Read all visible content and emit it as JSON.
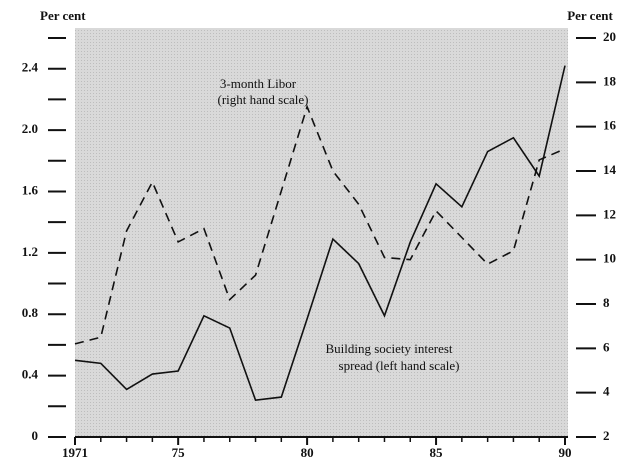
{
  "chart_data": {
    "type": "line",
    "y_axis_label": "Per cent",
    "y2_axis_label": "Per cent",
    "x": [
      1971,
      1972,
      1973,
      1974,
      1975,
      1976,
      1977,
      1978,
      1979,
      1980,
      1981,
      1982,
      1983,
      1984,
      1985,
      1986,
      1987,
      1988,
      1989,
      1990
    ],
    "series": [
      {
        "name": "Building society interest",
        "color": "#111111",
        "dash": "solid",
        "axis": "y",
        "values": [
          0.5,
          0.48,
          0.31,
          0.41,
          0.43,
          0.79,
          0.71,
          0.24,
          0.26,
          0.77,
          1.29,
          1.13,
          0.79,
          1.27,
          1.65,
          1.5,
          1.86,
          1.95,
          1.7,
          2.42
        ]
      },
      {
        "name": "3-month Libor",
        "color": "#111111",
        "dash": "dashed",
        "axis": "y2",
        "values": [
          6.2,
          6.5,
          11.3,
          13.5,
          10.8,
          11.4,
          8.2,
          9.3,
          13.1,
          16.9,
          14.0,
          12.5,
          10.1,
          10.0,
          12.2,
          11.0,
          9.8,
          10.4,
          14.5,
          15.0
        ]
      }
    ],
    "annotations": [
      "(right hand scale)",
      "spread (left hand scale)"
    ],
    "xlim": [
      1971,
      1990
    ],
    "xticks": [
      {
        "value": 1971,
        "label": "1971"
      },
      {
        "value": 1975,
        "label": "75"
      },
      {
        "value": 1980,
        "label": "80"
      },
      {
        "value": 1985,
        "label": "85"
      },
      {
        "value": 1990,
        "label": "90"
      }
    ],
    "xminorticks": [
      1972,
      1973,
      1974,
      1976,
      1977,
      1978,
      1979,
      1981,
      1982,
      1983,
      1984,
      1986,
      1987,
      1988,
      1989
    ],
    "ylim": [
      0,
      2.6
    ],
    "yticks": [
      0,
      0.4,
      0.8,
      1.2,
      1.6,
      {
        "value": 2,
        "label": "2.0"
      },
      2.4
    ],
    "yminorticks": [
      0.2,
      0.6,
      1.0,
      1.4,
      1.8,
      2.2,
      2.6
    ],
    "y2lim": [
      2,
      20
    ],
    "y2ticks": [
      2,
      4,
      6,
      8,
      10,
      12,
      14,
      16,
      18,
      20
    ],
    "background": "#d9d9d9"
  }
}
